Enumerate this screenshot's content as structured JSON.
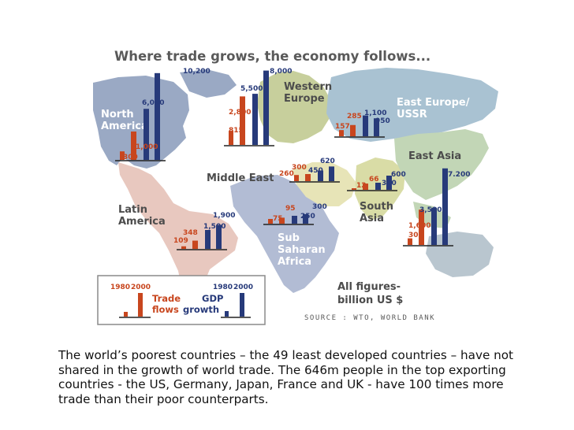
{
  "title": "Where trade grows, the economy follows...",
  "note_lines": [
    "All figures-",
    "billion US $"
  ],
  "source": "SOURCE : WTO, WORLD BANK",
  "caption": "The world’s poorest countries – the 49 least developed countries – have not shared in the growth of world trade. The 646m people in the top exporting countries - the US, Germany, Japan, France and UK - have 100 times more trade than their poor counterparts.",
  "legend": {
    "trade_years": [
      "1980",
      "2000"
    ],
    "trade_label": [
      "Trade",
      "flows"
    ],
    "gdp_years": [
      "1980",
      "2000"
    ],
    "gdp_label": [
      "GDP",
      "growth"
    ]
  },
  "colors": {
    "trade": "#c8461e",
    "gdp": "#273a7a",
    "ocean": "#ffffff",
    "north_america": "#9aa9c4",
    "latin_america": "#e8c8bf",
    "europe": "#c7cf9c",
    "ussr": "#a9c2d2",
    "middle_east": "#e7e4b7",
    "africa": "#b2bcd4",
    "south_asia": "#d9dca6",
    "east_asia": "#c2d6b6",
    "oceania": "#b9c6cf"
  },
  "chart_data": {
    "type": "bar",
    "title": "Where trade grows, the economy follows...",
    "unit": "billion US $",
    "categories": [
      "1980",
      "2000"
    ],
    "regions": [
      {
        "name": "North America",
        "label_lines": [
          "North",
          "America"
        ],
        "trade": [
          300,
          1000
        ],
        "gdp": [
          6000,
          10200
        ],
        "trade_labels": [
          "300",
          "1,000"
        ],
        "gdp_labels": [
          "6,000",
          "10,200"
        ]
      },
      {
        "name": "Western Europe",
        "label_lines": [
          "Western",
          "Europe"
        ],
        "trade": [
          815,
          2800
        ],
        "gdp": [
          5500,
          8000
        ],
        "trade_labels": [
          "815",
          "2,800"
        ],
        "gdp_labels": [
          "5,500",
          "8,000"
        ]
      },
      {
        "name": "East Europe/USSR",
        "label_lines": [
          "East Europe/",
          "USSR"
        ],
        "trade": [
          157,
          285
        ],
        "gdp": [
          1100,
          950
        ],
        "trade_labels": [
          "157",
          "285"
        ],
        "gdp_labels": [
          "1,100",
          "950"
        ]
      },
      {
        "name": "East Asia",
        "label_lines": [
          "East Asia"
        ],
        "trade": [
          300,
          1600
        ],
        "gdp": [
          3500,
          7200
        ],
        "trade_labels": [
          "300",
          "1,600"
        ],
        "gdp_labels": [
          "3,500",
          "7.200"
        ]
      },
      {
        "name": "Middle East",
        "label_lines": [
          "Middle East"
        ],
        "trade": [
          260,
          300
        ],
        "gdp": [
          450,
          620
        ],
        "trade_labels": [
          "260",
          "300"
        ],
        "gdp_labels": [
          "450",
          "620"
        ]
      },
      {
        "name": "South Asia",
        "label_lines": [
          "South",
          "Asia"
        ],
        "trade": [
          12,
          66
        ],
        "gdp": [
          300,
          600
        ],
        "trade_labels": [
          "12",
          "66"
        ],
        "gdp_labels": [
          "300",
          "600"
        ]
      },
      {
        "name": "Latin America",
        "label_lines": [
          "Latin",
          "America"
        ],
        "trade": [
          109,
          348
        ],
        "gdp": [
          1500,
          1900
        ],
        "trade_labels": [
          "109",
          "348"
        ],
        "gdp_labels": [
          "1,500",
          "1,900"
        ]
      },
      {
        "name": "Sub Saharan Africa",
        "label_lines": [
          "Sub",
          "Saharan",
          "Africa"
        ],
        "trade": [
          75,
          95
        ],
        "gdp": [
          250,
          300
        ],
        "trade_labels": [
          "75",
          "95"
        ],
        "gdp_labels": [
          "250",
          "300"
        ]
      }
    ]
  }
}
